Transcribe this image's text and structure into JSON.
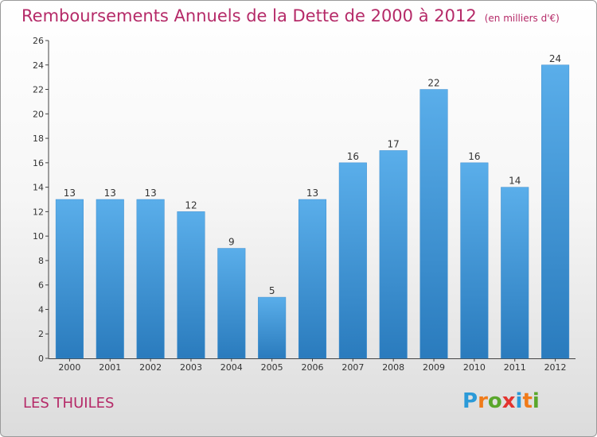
{
  "header": {
    "title": "Remboursements Annuels de la Dette de 2000 à 2012",
    "unit": "(en milliers d'€)"
  },
  "footer": {
    "place": "LES THUILES",
    "logo": [
      "P",
      "r",
      "o",
      "x",
      "i",
      "t",
      "i"
    ],
    "logo_colors": [
      "#2b9ad8",
      "#f07b1a",
      "#5aa72c",
      "#e3342f",
      "#2b9ad8",
      "#f07b1a",
      "#5aa72c"
    ]
  },
  "chart_data": {
    "type": "bar",
    "title": "Remboursements Annuels de la Dette de 2000 à 2012",
    "xlabel": "",
    "ylabel": "",
    "categories": [
      "2000",
      "2001",
      "2002",
      "2003",
      "2004",
      "2005",
      "2006",
      "2007",
      "2008",
      "2009",
      "2010",
      "2011",
      "2012"
    ],
    "values": [
      13,
      13,
      13,
      12,
      9,
      5,
      13,
      16,
      17,
      22,
      16,
      14,
      24
    ],
    "ylim": [
      0,
      26
    ],
    "yticks": [
      0,
      2,
      4,
      6,
      8,
      10,
      12,
      14,
      16,
      18,
      20,
      22,
      24,
      26
    ],
    "grid": false,
    "bar_color_top": "#5aaeea",
    "bar_color_bottom": "#2a7bbd"
  }
}
